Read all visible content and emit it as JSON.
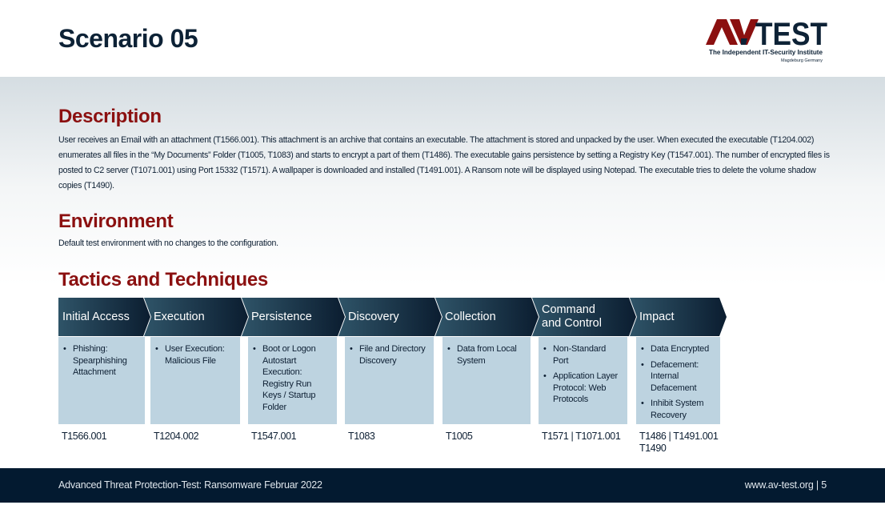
{
  "page": {
    "title": "Scenario 05"
  },
  "logo": {
    "brand": "AV-TEST",
    "tagline": "The Independent IT-Security Institute",
    "location": "Magdeburg Germany",
    "colors": {
      "red": "#8b1010",
      "navy": "#0d2236"
    }
  },
  "description": {
    "heading": "Description",
    "text": "User receives an Email with an attachment (T1566.001). This attachment is an archive that contains an executable. The attachment is stored and unpacked by the user. When executed the executable (T1204.002) enumerates all files in the “My Documents” Folder (T1005, T1083) and starts to encrypt a part of them (T1486). The executable gains persistence by setting a Registry Key (T1547.001). The number of encrypted files is posted to C2 server (T1071.001) using Port 15332 (T1571). A wallpaper is downloaded and installed (T1491.001). A Ransom note will be displayed using Notepad. The executable tries to delete the volume shadow copies (T1490)."
  },
  "environment": {
    "heading": "Environment",
    "text": "Default test environment with no changes to the configuration."
  },
  "tactics": {
    "heading": "Tactics and Techniques",
    "columns": [
      {
        "name": "Initial Access",
        "items": [
          "Phishing: Spearphishing Attachment"
        ],
        "codes": "T1566.001"
      },
      {
        "name": "Execution",
        "items": [
          "User Execution: Malicious File"
        ],
        "codes": "T1204.002"
      },
      {
        "name": "Persistence",
        "items": [
          "Boot or Logon Autostart Execution: Registry Run Keys / Startup Folder"
        ],
        "codes": "T1547.001"
      },
      {
        "name": "Discovery",
        "items": [
          "File and Directory Discovery"
        ],
        "codes": "T1083"
      },
      {
        "name": "Collection",
        "items": [
          "Data from Local System"
        ],
        "codes": "T1005"
      },
      {
        "name": "Command and Control",
        "items": [
          "Non-Standard Port",
          "Application Layer Protocol: Web Protocols"
        ],
        "codes": "T1571 | T1071.001"
      },
      {
        "name": "Impact",
        "items": [
          "Data Encrypted",
          "Defacement: Internal Defacement",
          "Inhibit System Recovery"
        ],
        "codes": "T1486 | T1491.001 T1490"
      }
    ]
  },
  "footer": {
    "left": "Advanced Threat Protection-Test: Ransomware Februar 2022",
    "right": "www.av-test.org | 5"
  }
}
